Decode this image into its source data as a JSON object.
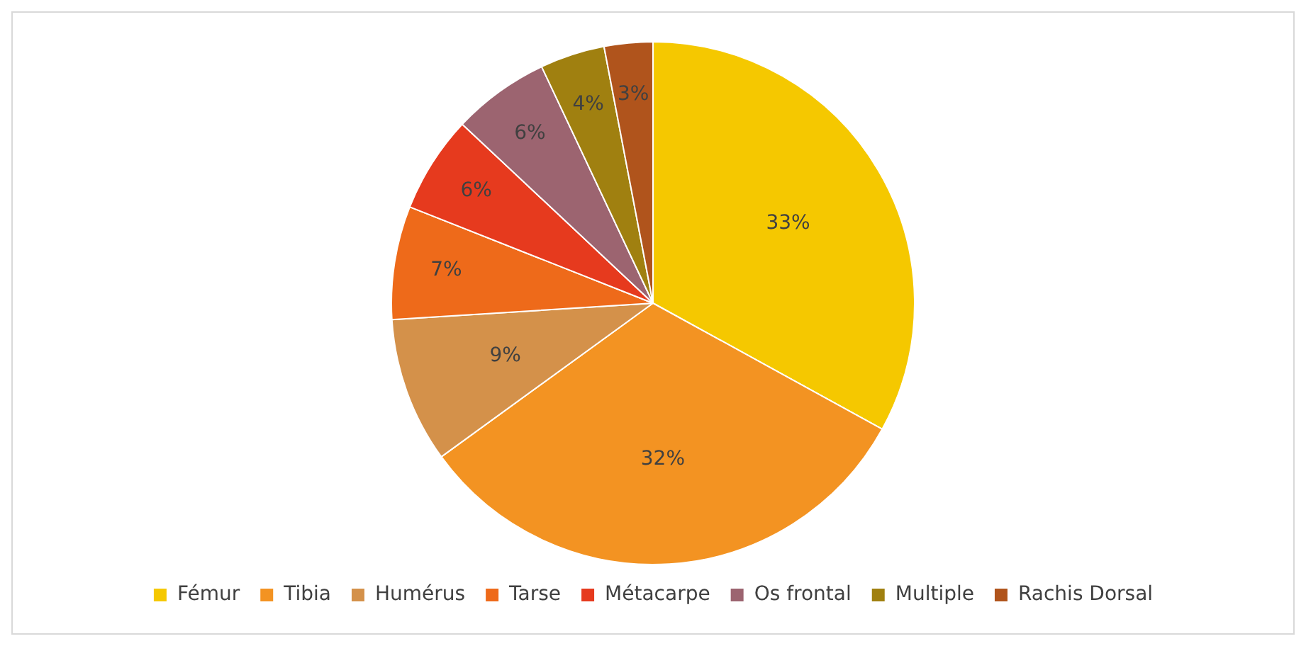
{
  "chart_data": {
    "type": "pie",
    "categories": [
      "Fémur",
      "Tibia",
      "Humérus",
      "Tarse",
      "Métacarpe",
      "Os frontal",
      "Multiple",
      "Rachis Dorsal"
    ],
    "values": [
      33,
      32,
      9,
      7,
      6,
      6,
      4,
      3
    ],
    "value_labels": [
      "33%",
      "32%",
      "9%",
      "7%",
      "6%",
      "6%",
      "4%",
      "3%"
    ],
    "colors": [
      "#f5c800",
      "#f39322",
      "#d4914a",
      "#ee6a1a",
      "#e63a1e",
      "#9c6470",
      "#a08010",
      "#b0541c"
    ],
    "legend": "bottom"
  }
}
